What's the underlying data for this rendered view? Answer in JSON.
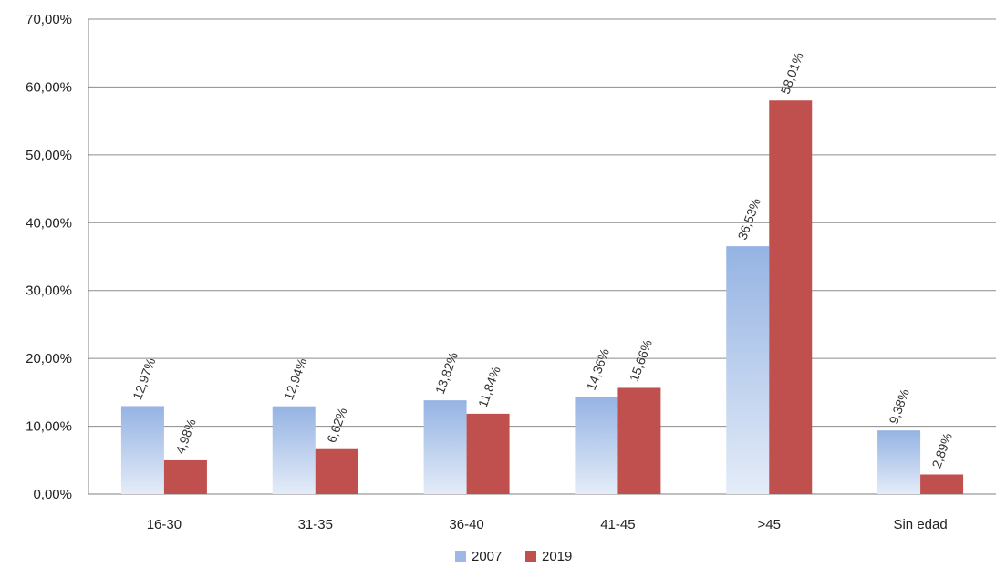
{
  "chart_data": {
    "type": "bar",
    "categories": [
      "16-30",
      "31-35",
      "36-40",
      "41-45",
      ">45",
      "Sin edad"
    ],
    "series": [
      {
        "name": "2007",
        "values": [
          12.97,
          12.94,
          13.82,
          14.36,
          36.53,
          9.38
        ],
        "labels": [
          "12,97%",
          "12,94%",
          "13,82%",
          "14,36%",
          "36,53%",
          "9,38%"
        ],
        "color": "#9db8e6"
      },
      {
        "name": "2019",
        "values": [
          4.98,
          6.62,
          11.84,
          15.66,
          58.01,
          2.89
        ],
        "labels": [
          "4,98%",
          "6,62%",
          "11,84%",
          "15,66%",
          "58,01%",
          "2,89%"
        ],
        "color": "#c0504d"
      }
    ],
    "ylim": [
      0,
      70
    ],
    "yticks": [
      0,
      10,
      20,
      30,
      40,
      50,
      60,
      70
    ],
    "ytick_labels": [
      "0,00%",
      "10,00%",
      "20,00%",
      "30,00%",
      "40,00%",
      "50,00%",
      "60,00%",
      "70,00%"
    ],
    "grid": true,
    "legend_position": "bottom",
    "title": "",
    "xlabel": "",
    "ylabel": ""
  }
}
